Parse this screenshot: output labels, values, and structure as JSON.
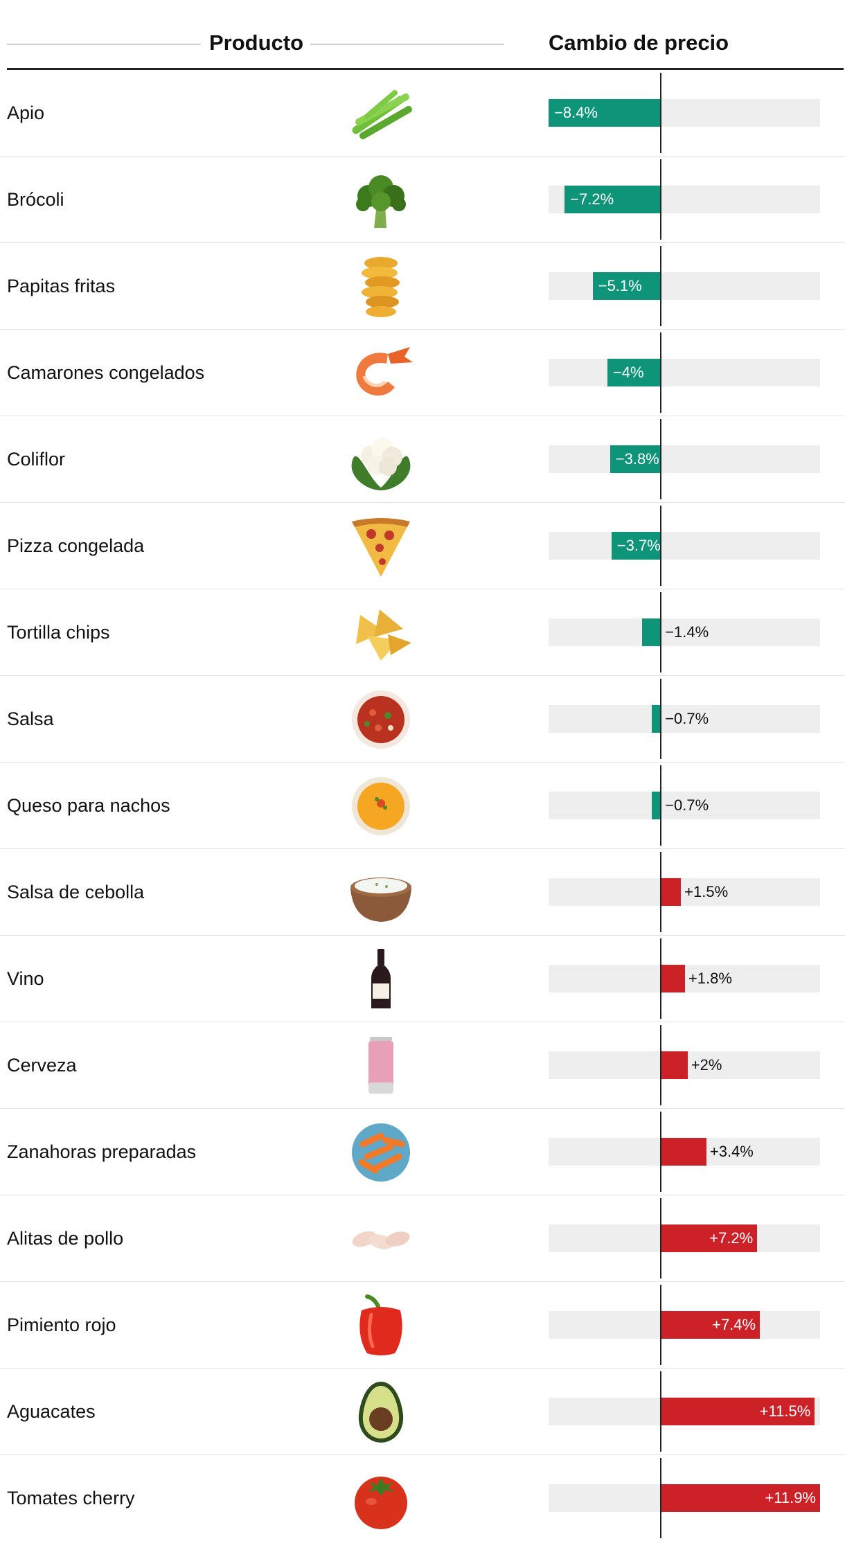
{
  "header": {
    "product_label": "Producto",
    "change_label": "Cambio de precio"
  },
  "colors": {
    "decrease": "#0e9478",
    "increase": "#cc2127",
    "track": "#eeeeee",
    "axis": "#222222"
  },
  "chart_data": {
    "type": "bar",
    "orientation": "horizontal",
    "title": "",
    "xlabel": "Cambio de precio",
    "ylabel": "Producto",
    "xlim": [
      -8.4,
      11.9
    ],
    "grid": false,
    "categories": [
      "Apio",
      "Brócoli",
      "Papitas fritas",
      "Camarones congelados",
      "Coliflor",
      "Pizza congelada",
      "Tortilla chips",
      "Salsa",
      "Queso para nachos",
      "Salsa de cebolla",
      "Vino",
      "Cerveza",
      "Zanahoras preparadas",
      "Alitas de pollo",
      "Pimiento rojo",
      "Aguacates",
      "Tomates cherry"
    ],
    "values": [
      -8.4,
      -7.2,
      -5.1,
      -4,
      -3.8,
      -3.7,
      -1.4,
      -0.7,
      -0.7,
      1.5,
      1.8,
      2,
      3.4,
      7.2,
      7.4,
      11.5,
      11.9
    ],
    "rows": [
      {
        "name": "Apio",
        "value": -8.4,
        "label": "−8.4%",
        "icon": "celery-icon"
      },
      {
        "name": "Brócoli",
        "value": -7.2,
        "label": "−7.2%",
        "icon": "broccoli-icon"
      },
      {
        "name": "Papitas fritas",
        "value": -5.1,
        "label": "−5.1%",
        "icon": "potato-chips-icon"
      },
      {
        "name": "Camarones congelados",
        "value": -4,
        "label": "−4%",
        "icon": "shrimp-icon"
      },
      {
        "name": "Coliflor",
        "value": -3.8,
        "label": "−3.8%",
        "icon": "cauliflower-icon"
      },
      {
        "name": "Pizza congelada",
        "value": -3.7,
        "label": "−3.7%",
        "icon": "pizza-slice-icon"
      },
      {
        "name": "Tortilla chips",
        "value": -1.4,
        "label": "−1.4%",
        "icon": "tortilla-chips-icon"
      },
      {
        "name": "Salsa",
        "value": -0.7,
        "label": "−0.7%",
        "icon": "salsa-bowl-icon"
      },
      {
        "name": "Queso para nachos",
        "value": -0.7,
        "label": "−0.7%",
        "icon": "nacho-cheese-bowl-icon"
      },
      {
        "name": "Salsa de cebolla",
        "value": 1.5,
        "label": "+1.5%",
        "icon": "onion-dip-bowl-icon"
      },
      {
        "name": "Vino",
        "value": 1.8,
        "label": "+1.8%",
        "icon": "wine-bottle-icon"
      },
      {
        "name": "Cerveza",
        "value": 2,
        "label": "+2%",
        "icon": "beer-can-icon"
      },
      {
        "name": "Zanahoras preparadas",
        "value": 3.4,
        "label": "+3.4%",
        "icon": "baby-carrots-icon"
      },
      {
        "name": "Alitas de pollo",
        "value": 7.2,
        "label": "+7.2%",
        "icon": "chicken-wings-icon"
      },
      {
        "name": "Pimiento rojo",
        "value": 7.4,
        "label": "+7.4%",
        "icon": "red-pepper-icon"
      },
      {
        "name": "Aguacates",
        "value": 11.5,
        "label": "+11.5%",
        "icon": "avocado-icon"
      },
      {
        "name": "Tomates cherry",
        "value": 11.9,
        "label": "+11.9%",
        "icon": "tomato-icon"
      }
    ]
  }
}
